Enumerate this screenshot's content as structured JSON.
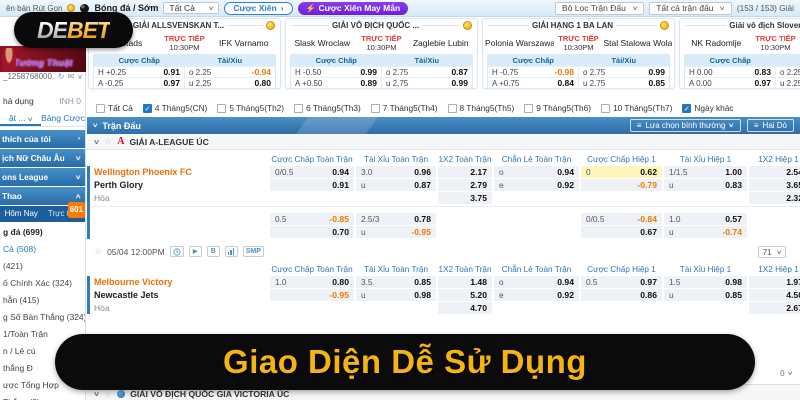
{
  "colors": {
    "accent_blue": "#2477bd",
    "bar_blue": "#3b80b8",
    "purple": "#7d2ae8",
    "neg_orange": "#f07800",
    "team_orange": "#e8710a",
    "live_red": "#e23b3b",
    "banner_gold": "#f6b40e",
    "highlight_yellow": "#fcf6bd",
    "badge_orange": "#ff7a00"
  },
  "brand": {
    "logo_de": "DE",
    "logo_bet": "BET",
    "promo_caption": "Tường Thuật"
  },
  "topbar": {
    "left_fragment": "ên bản Rút Gọn",
    "sport_label": "Bóng đá / Sớm",
    "filter_select": "Tất Cả",
    "parlay_button": "Cược Xiên",
    "lucky_parlay_button": "Cược Xiên May Mắn",
    "match_filter": "Bộ Lọc Trận Đấu",
    "all_matches": "Tất cả trận đấu",
    "league_count": "(153 / 153) Giải"
  },
  "cards": [
    {
      "league": "GIẢI ALLSVENSKAN T...",
      "home": "almstads",
      "away": "IFK Varnamo",
      "live": "TRỰC TIẾP",
      "time": "10:30PM",
      "hdp": "Cược Chấp",
      "ou": "Tài/Xỉu",
      "rows": [
        [
          "H +0.25",
          "0.91",
          "o 2.25",
          "-0.94"
        ],
        [
          "A -0.25",
          "0.97",
          "u 2.25",
          "0.80"
        ]
      ]
    },
    {
      "league": "GIẢI VÔ ĐỊCH QUỐC ...",
      "home": "Slask Wroclaw",
      "away": "Zaglebie Lubin",
      "live": "TRỰC TIẾP",
      "time": "10:30PM",
      "hdp": "Cược Chấp",
      "ou": "Tài/Xỉu",
      "rows": [
        [
          "H -0.50",
          "0.99",
          "o 2.75",
          "0.87"
        ],
        [
          "A +0.50",
          "0.89",
          "u 2.75",
          "0.99"
        ]
      ]
    },
    {
      "league": "GIẢI HẠNG 1 BA LAN",
      "home": "Polonia Warszawa",
      "away": "Stal Stalowa Wola",
      "live": "TRỰC TIẾP",
      "time": "10:30PM",
      "hdp": "Cược Chấp",
      "ou": "Tài/Xỉu",
      "rows": [
        [
          "H -0.75",
          "-0.98",
          "o 2.75",
          "0.99"
        ],
        [
          "A +0.75",
          "0.84",
          "u 2.75",
          "0.85"
        ]
      ]
    },
    {
      "league": "Giải vô địch Slovenia",
      "home": "NK Radomlje",
      "away": "N",
      "live": "TRỰC TIẾP",
      "time": "10:30PM",
      "hdp": "Cược Chấp",
      "ou": "Tài/Xỉu",
      "rows": [
        [
          "H 0.00",
          "0.83",
          "o 2.25",
          ""
        ],
        [
          "A 0.00",
          "0.97",
          "u 2.25",
          ""
        ]
      ]
    }
  ],
  "filters": {
    "items": [
      {
        "label": "Tất Cả",
        "checked": false
      },
      {
        "label": "4 Tháng5(CN)",
        "checked": true
      },
      {
        "label": "5 Tháng5(Th2)",
        "checked": false
      },
      {
        "label": "6 Tháng5(Th3)",
        "checked": false
      },
      {
        "label": "7 Tháng5(Th4)",
        "checked": false
      },
      {
        "label": "8 Tháng5(Th5)",
        "checked": false
      },
      {
        "label": "9 Tháng5(Th6)",
        "checked": false
      },
      {
        "label": "10 Tháng5(Th7)",
        "checked": false
      },
      {
        "label": "Ngày khác",
        "checked": true
      }
    ]
  },
  "bluebar": {
    "title": "Trận Đấu",
    "mode_select": "Lựa chọn bình thường",
    "rows_select": "Hai Dò"
  },
  "sections": {
    "league1": "GIẢI A-LEAGUE ÚC",
    "league2": "GIẢI VÔ ĐỊCH QUỐC GIA VICTORIA ÚC"
  },
  "table": {
    "columns": [
      "Cược Chấp Toàn Trận",
      "Tài Xỉu Toàn Trận",
      "1X2 Toàn Trận",
      "Chẵn Lẻ Toàn Trận",
      "Cược Chấp Hiệp 1",
      "Tài Xỉu Hiệp 1",
      "1X2 Hiệp 1"
    ],
    "match1": {
      "rows": [
        {
          "team": "Wellington Phoenix FC",
          "role": "home",
          "hl": "cch",
          "cells": {
            "cc": [
              "0/0.5",
              "0.94"
            ],
            "tx": [
              "3.0",
              "0.96"
            ],
            "x12": "2.17",
            "cl": [
              "o",
              "0.94"
            ],
            "cch": [
              "0",
              "0.62"
            ],
            "txh": [
              "1/1.5",
              "1.00"
            ],
            "x12h": "2.54"
          }
        },
        {
          "team": "Perth Glory",
          "role": "away",
          "cells": {
            "cc": [
              "",
              "0.91"
            ],
            "tx": [
              "u",
              "0.87"
            ],
            "x12": "2.79",
            "cl": [
              "e",
              "0.92"
            ],
            "cch": [
              "",
              "-0.79"
            ],
            "txh": [
              "u",
              "0.83"
            ],
            "x12h": "3.65"
          }
        },
        {
          "team": "Hòa",
          "role": "draw",
          "cells": {
            "x12": "3.75",
            "x12h": "2.32"
          }
        },
        {
          "gap": true
        },
        {
          "team": "",
          "cells": {
            "cc": [
              "0.5",
              "-0.85"
            ],
            "tx": [
              "2.5/3",
              "0.78"
            ],
            "cch": [
              "0/0.5",
              "-0.84"
            ],
            "txh": [
              "1.0",
              "0.57"
            ]
          }
        },
        {
          "team": "",
          "cells": {
            "cc": [
              "",
              "0.70"
            ],
            "tx": [
              "u",
              "-0.95"
            ],
            "cch": [
              "",
              "0.67"
            ],
            "txh": [
              "u",
              "-0.74"
            ]
          }
        }
      ],
      "footer": {
        "date": "05/04 12:00PM",
        "b_label": "B",
        "smp_label": "SMP",
        "count": "71"
      }
    },
    "match2": {
      "rows": [
        {
          "team": "Melbourne Victory",
          "role": "home",
          "cells": {
            "cc": [
              "1.0",
              "0.80"
            ],
            "tx": [
              "3.5",
              "0.85"
            ],
            "x12": "1.48",
            "cl": [
              "o",
              "0.94"
            ],
            "cch": [
              "0.5",
              "0.97"
            ],
            "txh": [
              "1.5",
              "0.98"
            ],
            "x12h": "1.97"
          }
        },
        {
          "team": "Newcastle Jets",
          "role": "away",
          "cells": {
            "cc": [
              "",
              "-0.95"
            ],
            "tx": [
              "u",
              "0.98"
            ],
            "x12": "5.20",
            "cl": [
              "e",
              "0.92"
            ],
            "cch": [
              "",
              "0.86"
            ],
            "txh": [
              "u",
              "0.85"
            ],
            "x12h": "4.50"
          }
        },
        {
          "team": "Hòa",
          "role": "draw",
          "cells": {
            "x12": "4.70",
            "x12h": "2.67"
          }
        }
      ]
    }
  },
  "sidebar": {
    "account_id": "_1258768000...",
    "balance_label": "hả dụng",
    "balance_value": "INH 0",
    "tab_left": "ật ...",
    "tab_right": "Bảng Cược",
    "menu_buttons": [
      {
        "label": "thích của tôi",
        "chev": "›"
      },
      {
        "label": "ịch Nữ Châu Âu",
        "chev": "∨"
      },
      {
        "label": "ons League",
        "chev": "∨"
      },
      {
        "label": "Thao",
        "chev": "∧"
      }
    ],
    "subtabs": {
      "today": "Hôm Nay",
      "live": "Trực tiếp",
      "badge": "601"
    },
    "list": [
      {
        "label": "g đá (699)",
        "bold": true
      },
      {
        "label": "Cả (508)",
        "active": true
      },
      {
        "label": "(421)"
      },
      {
        "label": "ố Chính Xác (324)"
      },
      {
        "label": "hẵn (415)"
      },
      {
        "label": "g Số Bàn Thắng (324)"
      },
      {
        "label": "1/Toàn Trận"
      },
      {
        "label": "n / Lẻ cú"
      },
      {
        "label": "thắng Đ"
      },
      {
        "label": "ược Tổng Hợp"
      },
      {
        "label": "Thắng (8)"
      }
    ]
  },
  "banner": {
    "text": "Giao Diện Dễ Sử Dụng"
  },
  "misc": {
    "corner_value": "0"
  }
}
